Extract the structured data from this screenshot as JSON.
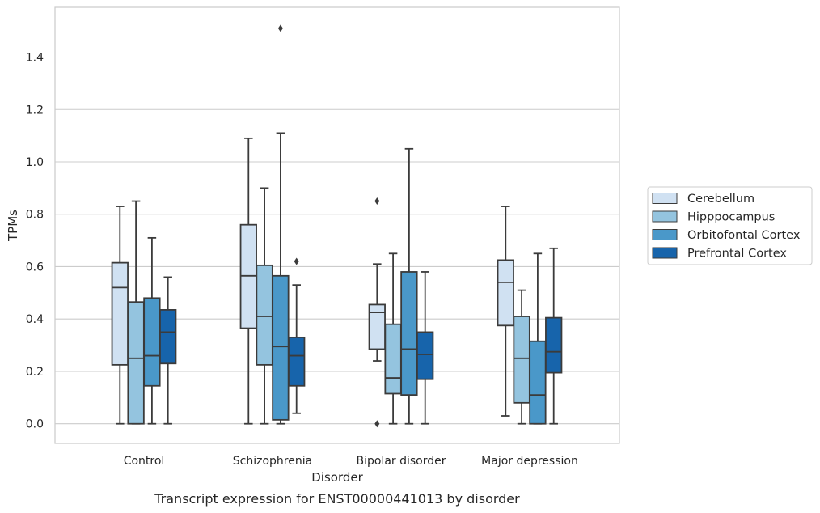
{
  "chart_data": {
    "type": "box",
    "title": "",
    "caption": "Transcript expression for ENST00000441013 by disorder",
    "xlabel": "Disorder",
    "ylabel": "TPMs",
    "ylim": [
      -0.075,
      1.59
    ],
    "yticks": [
      "0.0",
      "0.2",
      "0.4",
      "0.6",
      "0.8",
      "1.0",
      "1.2",
      "1.4"
    ],
    "grid": "horizontal",
    "legend_position": "right",
    "categories": [
      "Control",
      "Schizophrenia",
      "Bipolar disorder",
      "Major depression"
    ],
    "series": [
      {
        "name": "Cerebellum",
        "color": "#d0e1f2",
        "boxes": [
          {
            "whislo": 0.0,
            "q1": 0.225,
            "med": 0.52,
            "q3": 0.615,
            "whishi": 0.83,
            "fliers": []
          },
          {
            "whislo": 0.0,
            "q1": 0.365,
            "med": 0.565,
            "q3": 0.76,
            "whishi": 1.09,
            "fliers": []
          },
          {
            "whislo": 0.24,
            "q1": 0.285,
            "med": 0.425,
            "q3": 0.455,
            "whishi": 0.61,
            "fliers": [
              0.0,
              0.85
            ]
          },
          {
            "whislo": 0.03,
            "q1": 0.375,
            "med": 0.54,
            "q3": 0.625,
            "whishi": 0.83,
            "fliers": []
          }
        ]
      },
      {
        "name": "Hipppocampus",
        "color": "#94c4df",
        "boxes": [
          {
            "whislo": 0.0,
            "q1": 0.0,
            "med": 0.25,
            "q3": 0.465,
            "whishi": 0.85,
            "fliers": []
          },
          {
            "whislo": 0.0,
            "q1": 0.225,
            "med": 0.41,
            "q3": 0.605,
            "whishi": 0.9,
            "fliers": []
          },
          {
            "whislo": 0.0,
            "q1": 0.115,
            "med": 0.175,
            "q3": 0.38,
            "whishi": 0.65,
            "fliers": []
          },
          {
            "whislo": 0.0,
            "q1": 0.08,
            "med": 0.25,
            "q3": 0.41,
            "whishi": 0.51,
            "fliers": []
          }
        ]
      },
      {
        "name": "Orbitofontal Cortex",
        "color": "#4a98c9",
        "boxes": [
          {
            "whislo": 0.0,
            "q1": 0.145,
            "med": 0.26,
            "q3": 0.48,
            "whishi": 0.71,
            "fliers": []
          },
          {
            "whislo": 0.0,
            "q1": 0.015,
            "med": 0.295,
            "q3": 0.565,
            "whishi": 1.11,
            "fliers": [
              1.51
            ]
          },
          {
            "whislo": 0.0,
            "q1": 0.11,
            "med": 0.285,
            "q3": 0.58,
            "whishi": 1.05,
            "fliers": []
          },
          {
            "whislo": 0.0,
            "q1": 0.0,
            "med": 0.11,
            "q3": 0.315,
            "whishi": 0.65,
            "fliers": []
          }
        ]
      },
      {
        "name": "Prefrontal Cortex",
        "color": "#1764ab",
        "boxes": [
          {
            "whislo": 0.0,
            "q1": 0.23,
            "med": 0.35,
            "q3": 0.435,
            "whishi": 0.56,
            "fliers": []
          },
          {
            "whislo": 0.04,
            "q1": 0.145,
            "med": 0.26,
            "q3": 0.33,
            "whishi": 0.53,
            "fliers": [
              0.62
            ]
          },
          {
            "whislo": 0.0,
            "q1": 0.17,
            "med": 0.265,
            "q3": 0.35,
            "whishi": 0.58,
            "fliers": []
          },
          {
            "whislo": 0.0,
            "q1": 0.195,
            "med": 0.275,
            "q3": 0.405,
            "whishi": 0.67,
            "fliers": []
          }
        ]
      }
    ]
  }
}
